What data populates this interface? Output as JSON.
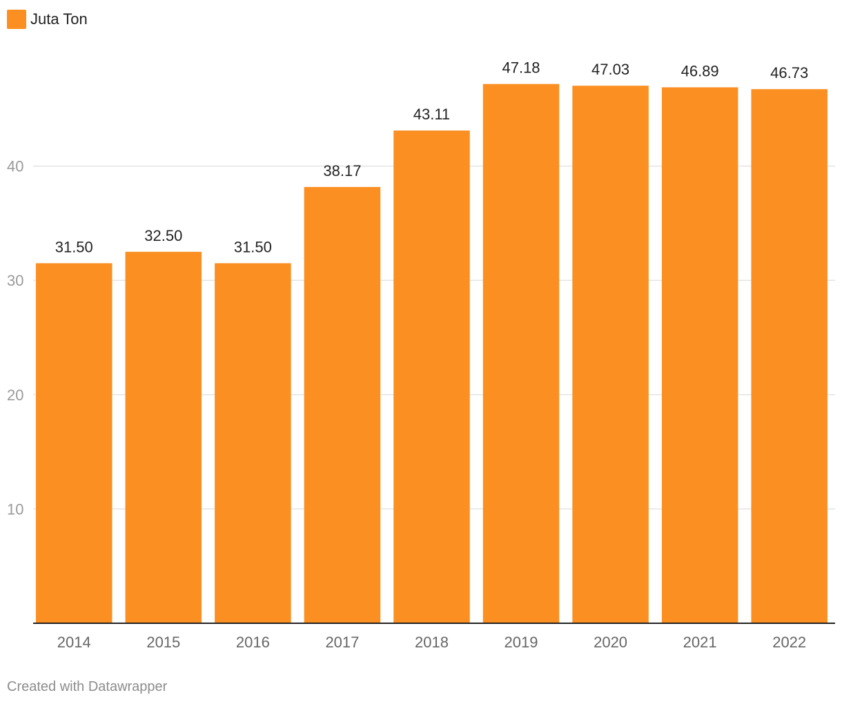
{
  "chart_data": {
    "type": "bar",
    "categories": [
      "2014",
      "2015",
      "2016",
      "2017",
      "2018",
      "2019",
      "2020",
      "2021",
      "2022"
    ],
    "series": [
      {
        "name": "Juta Ton",
        "values": [
          31.5,
          32.5,
          31.5,
          38.17,
          43.11,
          47.18,
          47.03,
          46.89,
          46.73
        ],
        "labels": [
          "31.50",
          "32.50",
          "31.50",
          "38.17",
          "43.11",
          "47.18",
          "47.03",
          "46.89",
          "46.73"
        ]
      }
    ],
    "ylim": [
      0,
      50
    ],
    "yticks": [
      10,
      20,
      30,
      40
    ],
    "ytick_labels": [
      "10",
      "20",
      "30",
      "40"
    ],
    "xlabel": "",
    "ylabel": "",
    "grid": true,
    "legend_position": "top-left"
  },
  "legend": {
    "label": "Juta Ton"
  },
  "colors": {
    "bar": "#fb8f22",
    "grid": "#e3e3e3",
    "baseline": "#222222"
  },
  "credit": "Created with Datawrapper"
}
